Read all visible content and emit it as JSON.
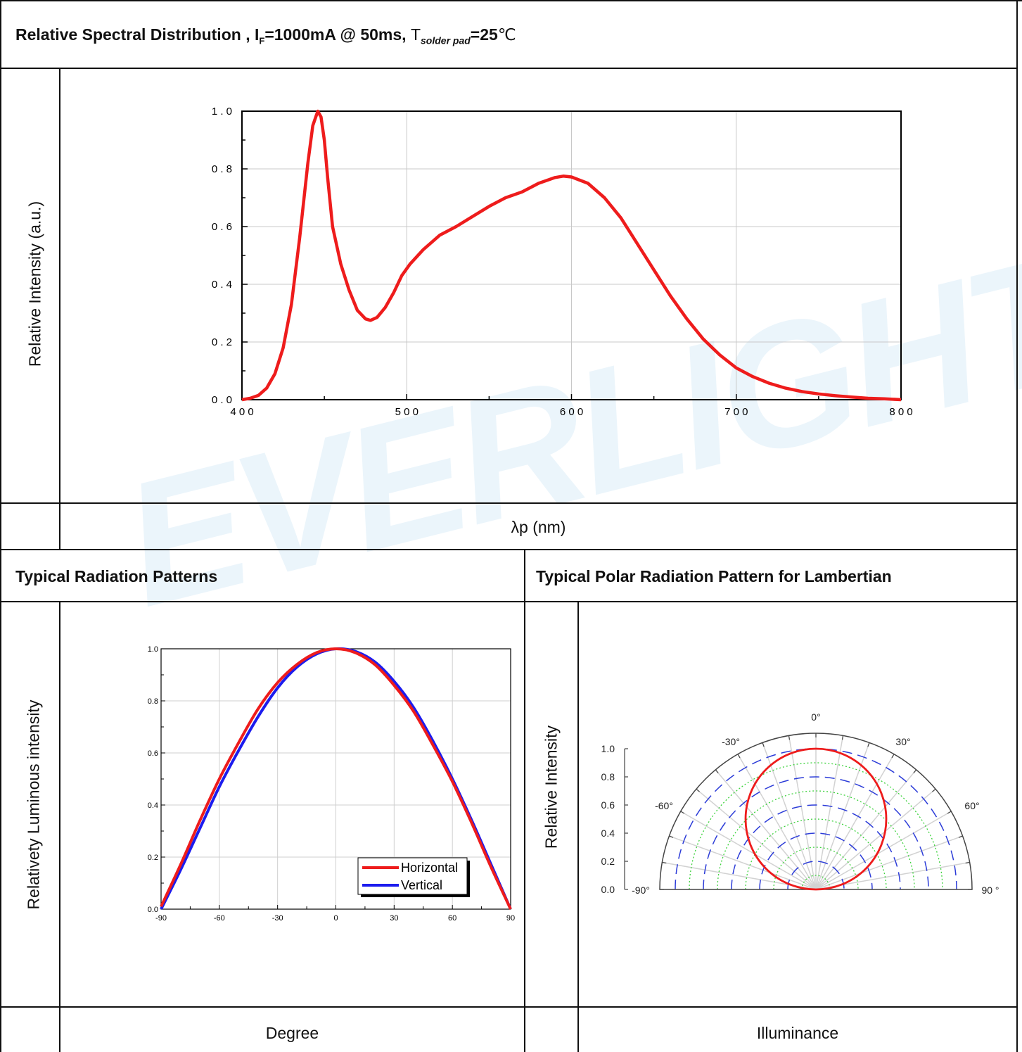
{
  "watermark": "EVERLIGHT",
  "sections": {
    "spectral": {
      "title_prefix": "Relative Spectral Distribution , I",
      "title_sub_F": "F",
      "title_mid": "=1000mA @ 50ms, ",
      "title_T": "T",
      "title_sub_solder": "solder pad",
      "title_end": "=25",
      "title_unit": "℃",
      "ylabel": "Relative Intensity (a.u.)",
      "xlabel": "λp (nm)"
    },
    "radiation": {
      "title": "Typical Radiation Patterns",
      "ylabel": "Relativety Luminous intensity",
      "xlabel": "Degree"
    },
    "polar": {
      "title": "Typical Polar Radiation Pattern for Lambertian",
      "ylabel": "Relative Intensity",
      "xlabel": "Illuminance"
    }
  },
  "chart_data": [
    {
      "type": "line",
      "color": "#ee1c1c",
      "xlim": [
        400,
        800
      ],
      "ylim": [
        0,
        1.0
      ],
      "xticks": [
        "4 0 0",
        "5 0 0",
        "6 0 0",
        "7 0 0",
        "8 0 0"
      ],
      "yticks": [
        "0 . 0",
        "0 . 2",
        "0 . 4",
        "0 . 6",
        "0 . 8",
        "1 . 0"
      ],
      "grid": true,
      "x": [
        400,
        405,
        410,
        415,
        420,
        425,
        430,
        435,
        440,
        443,
        446,
        448,
        450,
        452,
        455,
        460,
        465,
        470,
        475,
        478,
        482,
        487,
        492,
        497,
        502,
        510,
        520,
        530,
        540,
        550,
        560,
        570,
        580,
        590,
        595,
        600,
        610,
        620,
        630,
        640,
        650,
        660,
        670,
        680,
        690,
        700,
        710,
        720,
        730,
        740,
        750,
        760,
        770,
        780,
        790,
        800
      ],
      "y": [
        0.0,
        0.005,
        0.015,
        0.04,
        0.09,
        0.18,
        0.33,
        0.56,
        0.82,
        0.95,
        1.0,
        0.98,
        0.9,
        0.77,
        0.6,
        0.47,
        0.38,
        0.31,
        0.28,
        0.275,
        0.285,
        0.32,
        0.37,
        0.43,
        0.47,
        0.52,
        0.57,
        0.6,
        0.635,
        0.67,
        0.7,
        0.72,
        0.75,
        0.77,
        0.775,
        0.772,
        0.75,
        0.7,
        0.63,
        0.54,
        0.45,
        0.36,
        0.28,
        0.21,
        0.155,
        0.11,
        0.08,
        0.057,
        0.04,
        0.028,
        0.02,
        0.014,
        0.009,
        0.005,
        0.003,
        0.0
      ]
    },
    {
      "type": "line",
      "xlim": [
        -90,
        90
      ],
      "ylim": [
        0,
        1.0
      ],
      "xticks": [
        "-90",
        "-60",
        "-30",
        "0",
        "30",
        "60",
        "90"
      ],
      "yticks": [
        "0.0",
        "0.2",
        "0.4",
        "0.6",
        "0.8",
        "1.0"
      ],
      "grid": true,
      "legend_position": "bottom-right",
      "series": [
        {
          "name": "Horizontal",
          "color": "#ee1c1c",
          "x": [
            -90,
            -80,
            -70,
            -60,
            -50,
            -40,
            -30,
            -20,
            -10,
            0,
            10,
            20,
            30,
            40,
            50,
            60,
            70,
            80,
            90
          ],
          "y": [
            0.01,
            0.17,
            0.34,
            0.5,
            0.64,
            0.77,
            0.87,
            0.94,
            0.985,
            1.0,
            0.985,
            0.94,
            0.86,
            0.76,
            0.63,
            0.49,
            0.33,
            0.16,
            0.0
          ]
        },
        {
          "name": "Vertical",
          "color": "#1c1cee",
          "x": [
            -90,
            -80,
            -70,
            -60,
            -50,
            -40,
            -30,
            -20,
            -10,
            0,
            10,
            20,
            30,
            40,
            50,
            60,
            70,
            80,
            90
          ],
          "y": [
            0.0,
            0.15,
            0.31,
            0.47,
            0.61,
            0.74,
            0.85,
            0.93,
            0.98,
            1.0,
            0.99,
            0.95,
            0.875,
            0.775,
            0.645,
            0.5,
            0.34,
            0.17,
            0.0
          ]
        }
      ]
    },
    {
      "type": "polar",
      "rlim": [
        0,
        1.0
      ],
      "rticks": [
        "0.0",
        "0.2",
        "0.4",
        "0.6",
        "0.8",
        "1.0"
      ],
      "angle_labels": [
        "0°",
        "30°",
        "60°",
        "90 °",
        "-30°",
        "-60°",
        "-90°"
      ],
      "angles": [
        0,
        30,
        60,
        90,
        -30,
        -60,
        -90
      ],
      "series": [
        {
          "color": "#ee1c1c",
          "pattern": "Lambertian",
          "r": "cos(theta)"
        }
      ]
    }
  ]
}
